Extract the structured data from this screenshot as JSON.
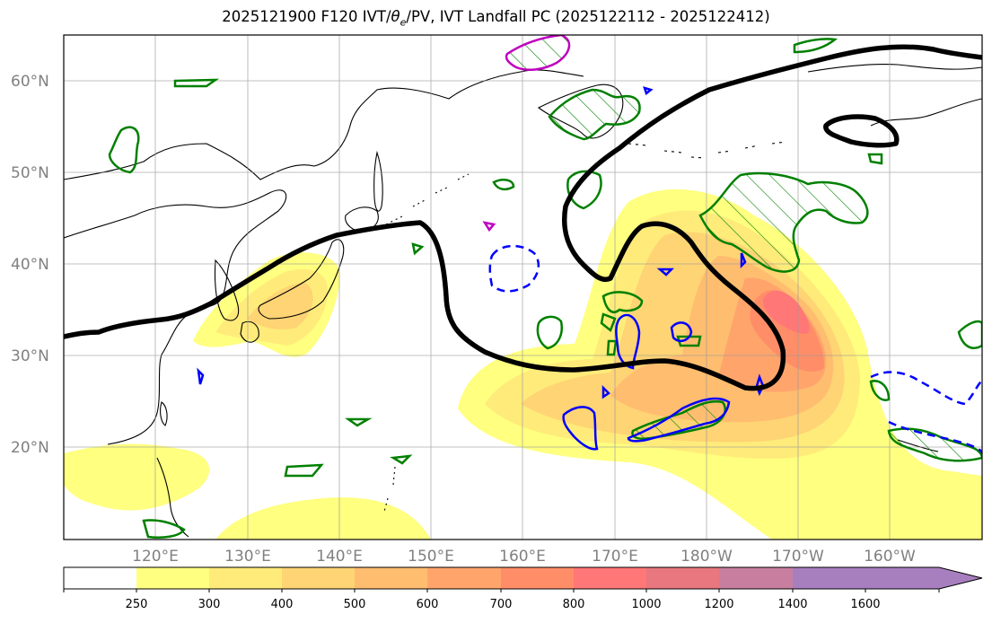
{
  "title": {
    "prefix": "2025121900 F120 IVT/",
    "theta": "θ",
    "theta_sub": "e",
    "suffix": "/PV, IVT Landfall PC (2025122112 - 2025122412)"
  },
  "map": {
    "extent": {
      "lon_min": 110,
      "lon_max": 210,
      "lat_min": 10,
      "lat_max": 65
    },
    "lat_ticks": [
      {
        "lat": 60,
        "label": "60°N"
      },
      {
        "lat": 50,
        "label": "50°N"
      },
      {
        "lat": 40,
        "label": "40°N"
      },
      {
        "lat": 30,
        "label": "30°N"
      },
      {
        "lat": 20,
        "label": "20°N"
      }
    ],
    "lon_ticks": [
      {
        "lon": 120,
        "label": "120°E"
      },
      {
        "lon": 130,
        "label": "130°E"
      },
      {
        "lon": 140,
        "label": "140°E"
      },
      {
        "lon": 150,
        "label": "150°E"
      },
      {
        "lon": 160,
        "label": "160°E"
      },
      {
        "lon": 170,
        "label": "170°E"
      },
      {
        "lon": 180,
        "label": "180°W"
      },
      {
        "lon": 190,
        "label": "170°W"
      },
      {
        "lon": 200,
        "label": "160°W"
      }
    ],
    "colors": {
      "ivt_250": "#ffff80",
      "ivt_300": "#ffeb7a",
      "ivt_400": "#ffd474",
      "ivt_500": "#ffbd70",
      "ivt_600": "#ffa56c",
      "ivt_700": "#ff8e68",
      "ivt_800": "#ff7777",
      "pv_line": "#000000",
      "theta_green": "#008000",
      "blue_contour": "#0000ff",
      "magenta_contour": "#c000c0",
      "coast": "#000000"
    }
  },
  "colorbar": {
    "ticks": [
      "250",
      "300",
      "400",
      "500",
      "600",
      "700",
      "800",
      "1000",
      "1200",
      "1400",
      "1600"
    ],
    "colors": [
      "#ffffff",
      "#ffff80",
      "#ffeb7a",
      "#ffd474",
      "#ffbd70",
      "#ffa56c",
      "#ff8e68",
      "#ff7777",
      "#e8777f",
      "#c87f9f",
      "#a77fbf"
    ]
  }
}
